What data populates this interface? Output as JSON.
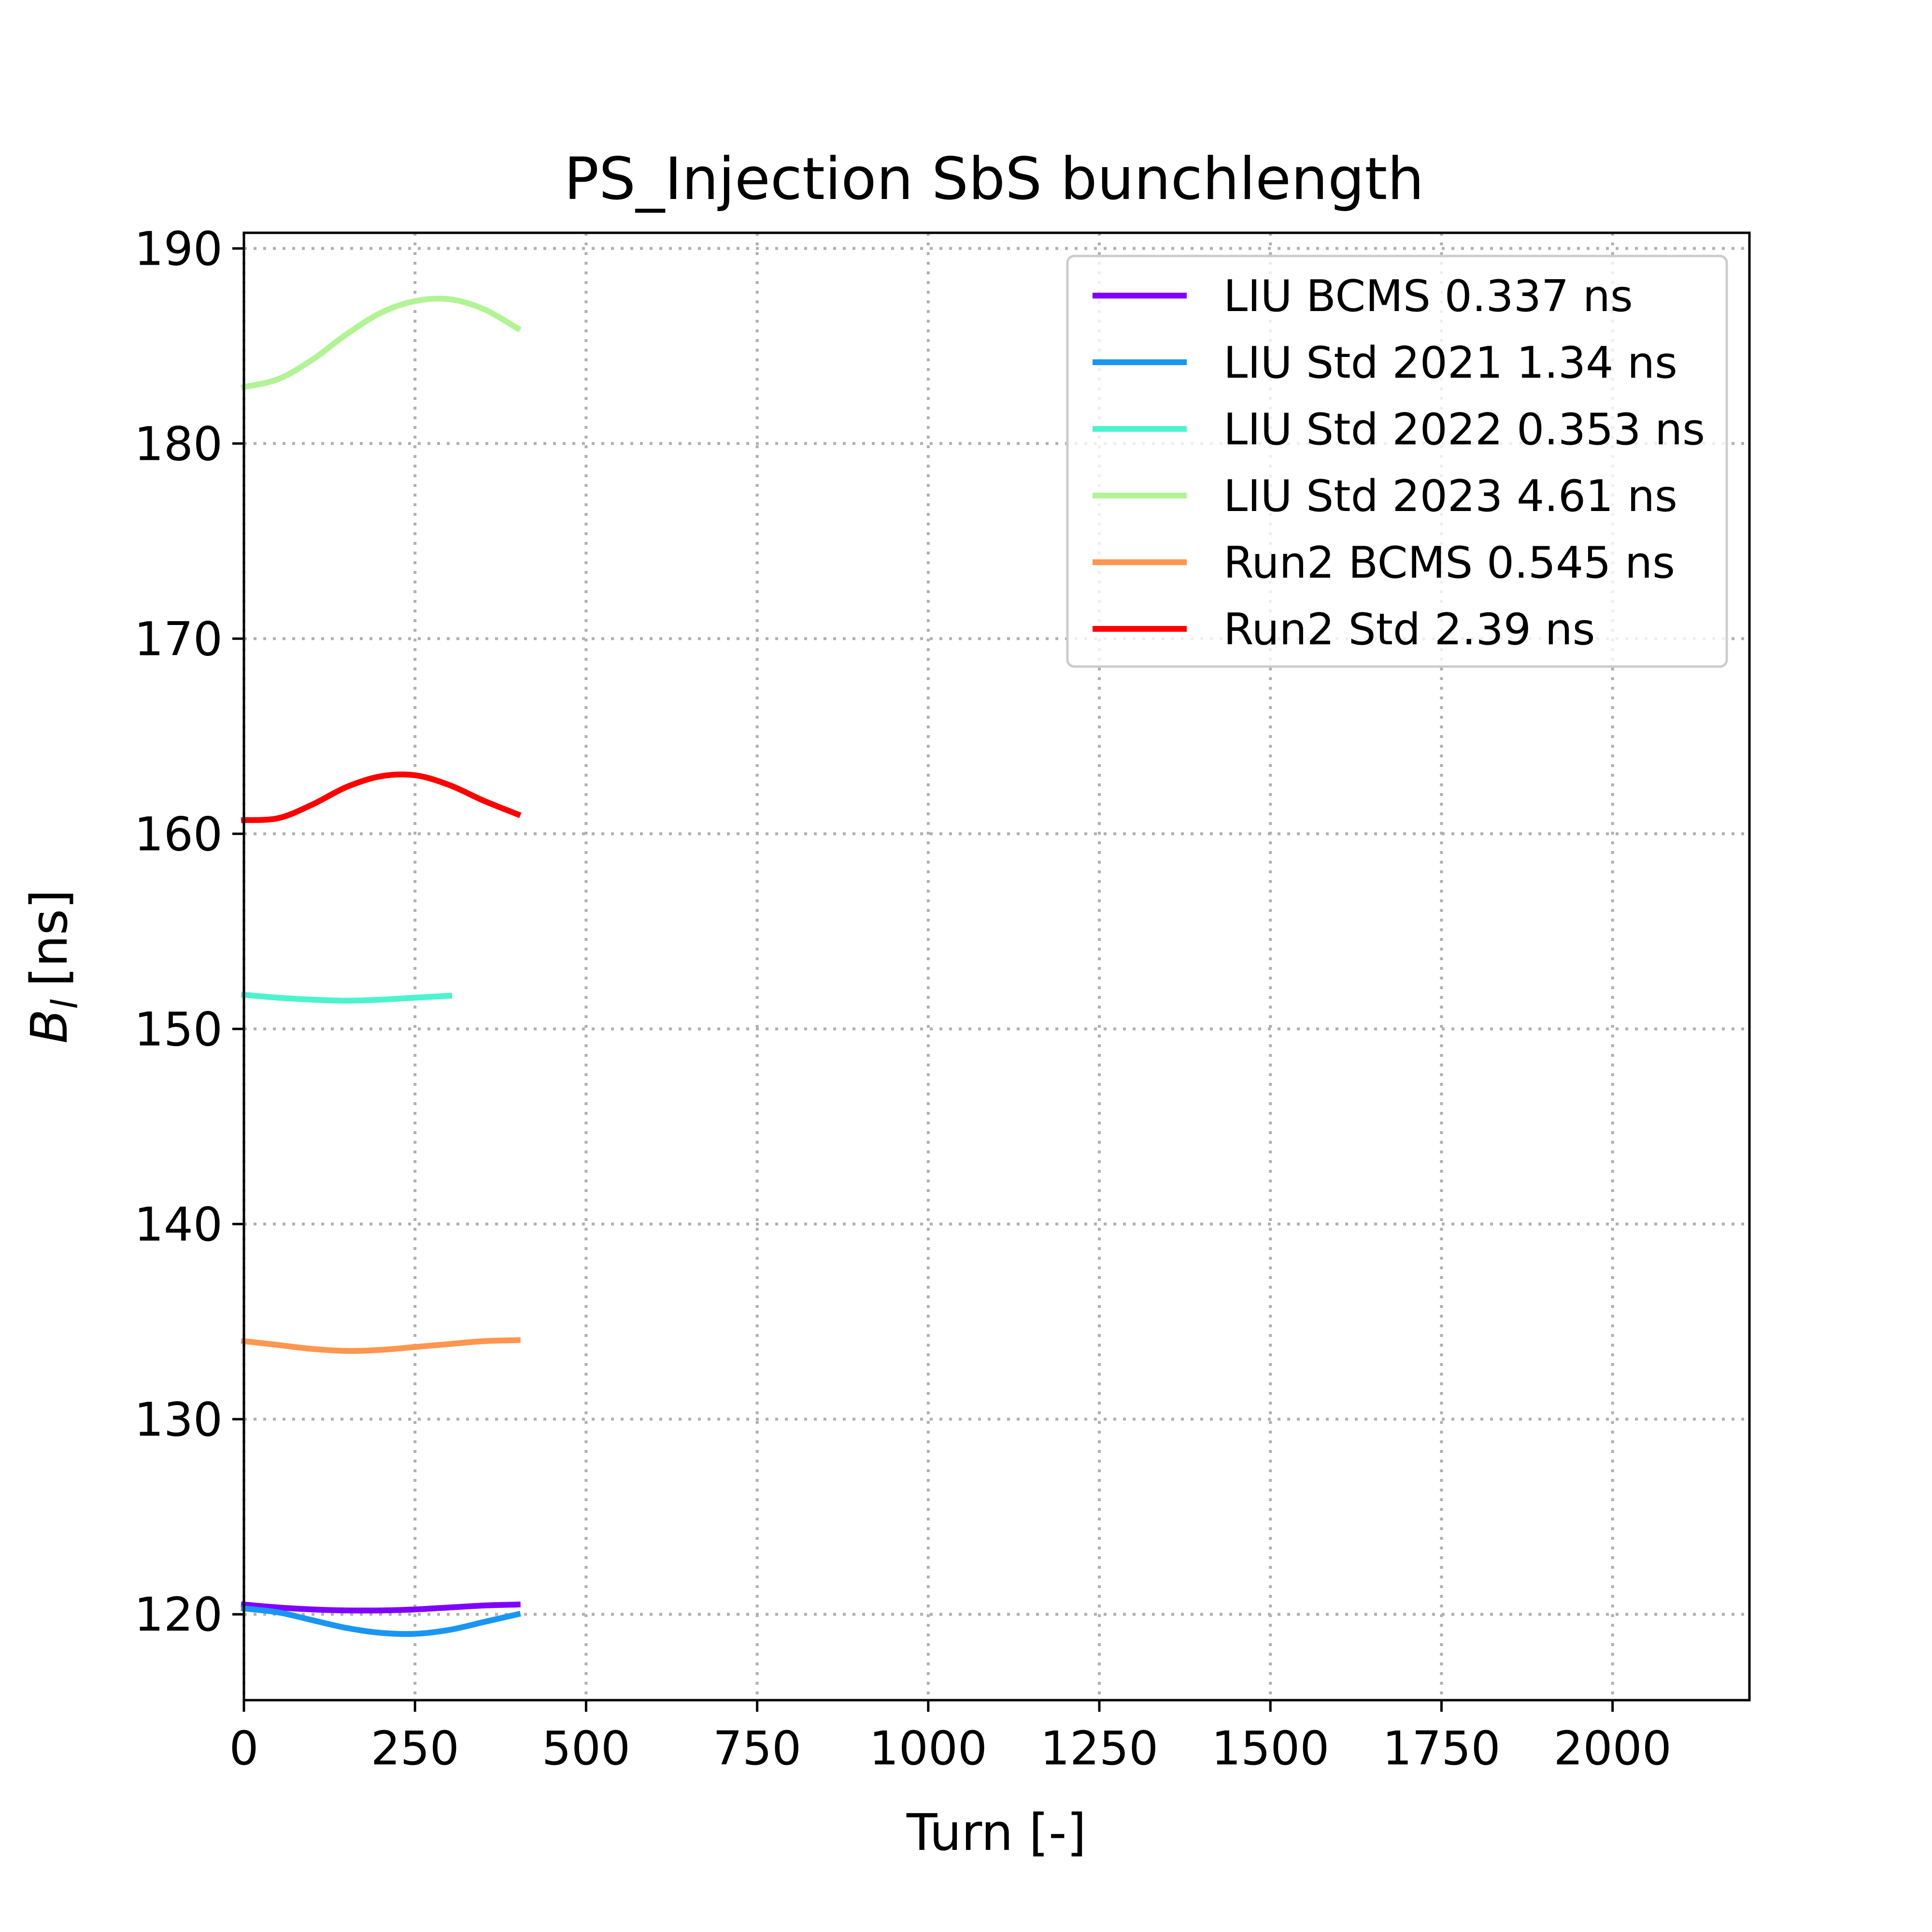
{
  "chart_data": {
    "type": "line",
    "title": "PS_Injection SbS bunchlength",
    "xlabel": "Turn [-]",
    "ylabel_main": "B",
    "ylabel_sub": "l",
    "ylabel_unit": "[ns]",
    "xlim": [
      0,
      2200
    ],
    "ylim": [
      115.6,
      190.8
    ],
    "xticks": [
      0,
      250,
      500,
      750,
      1000,
      1250,
      1500,
      1750,
      2000
    ],
    "xtick_labels": [
      "0",
      "250",
      "500",
      "750",
      "1000",
      "1250",
      "1500",
      "1750",
      "2000"
    ],
    "yticks": [
      120,
      130,
      140,
      150,
      160,
      170,
      180,
      190
    ],
    "ytick_labels": [
      "120",
      "130",
      "140",
      "150",
      "160",
      "170",
      "180",
      "190"
    ],
    "grid": true,
    "grid_style": "dotted",
    "legend_position": "top-right",
    "series": [
      {
        "name": "LIU BCMS 0.337 ns",
        "color": "#8000ff",
        "x": [
          0,
          50,
          100,
          150,
          200,
          250,
          300,
          350,
          400
        ],
        "y": [
          120.5,
          120.35,
          120.25,
          120.2,
          120.2,
          120.25,
          120.35,
          120.45,
          120.5
        ]
      },
      {
        "name": "LIU Std 2021 1.34 ns",
        "color": "#1996f3",
        "x": [
          0,
          50,
          100,
          150,
          200,
          250,
          300,
          350,
          400
        ],
        "y": [
          120.3,
          120.1,
          119.7,
          119.3,
          119.05,
          119.0,
          119.2,
          119.6,
          120.0
        ]
      },
      {
        "name": "LIU Std 2022 0.353 ns",
        "color": "#4df3ce",
        "x": [
          0,
          50,
          100,
          150,
          200,
          250,
          300
        ],
        "y": [
          151.75,
          151.6,
          151.5,
          151.45,
          151.5,
          151.6,
          151.7
        ]
      },
      {
        "name": "LIU Std 2023 4.61 ns",
        "color": "#b2f396",
        "x": [
          0,
          50,
          100,
          150,
          200,
          250,
          300,
          350,
          400
        ],
        "y": [
          182.9,
          183.3,
          184.3,
          185.6,
          186.7,
          187.3,
          187.4,
          186.9,
          185.9
        ]
      },
      {
        "name": "Run2 BCMS 0.545 ns",
        "color": "#ff964f",
        "x": [
          0,
          50,
          100,
          150,
          200,
          250,
          300,
          350,
          400
        ],
        "y": [
          134.0,
          133.8,
          133.6,
          133.5,
          133.55,
          133.7,
          133.85,
          134.0,
          134.05
        ]
      },
      {
        "name": "Run2 Std 2.39 ns",
        "color": "#ff0000",
        "x": [
          0,
          50,
          100,
          150,
          200,
          250,
          300,
          350,
          400
        ],
        "y": [
          160.7,
          160.8,
          161.5,
          162.4,
          162.95,
          163.0,
          162.5,
          161.7,
          161.0
        ]
      }
    ]
  }
}
